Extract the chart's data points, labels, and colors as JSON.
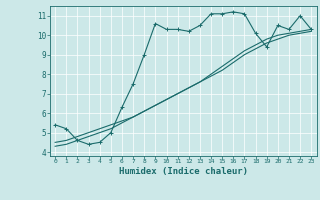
{
  "xlabel": "Humidex (Indice chaleur)",
  "xlim": [
    -0.5,
    23.5
  ],
  "ylim": [
    3.8,
    11.5
  ],
  "xticks": [
    0,
    1,
    2,
    3,
    4,
    5,
    6,
    7,
    8,
    9,
    10,
    11,
    12,
    13,
    14,
    15,
    16,
    17,
    18,
    19,
    20,
    21,
    22,
    23
  ],
  "yticks": [
    4,
    5,
    6,
    7,
    8,
    9,
    10,
    11
  ],
  "bg_color": "#cce8e8",
  "line_color": "#1a6b6b",
  "line1_x": [
    0,
    1,
    2,
    3,
    4,
    5,
    6,
    7,
    8,
    9,
    10,
    11,
    12,
    13,
    14,
    15,
    16,
    17,
    18,
    19,
    20,
    21,
    22,
    23
  ],
  "line1_y": [
    5.4,
    5.2,
    4.6,
    4.4,
    4.5,
    5.0,
    6.3,
    7.5,
    9.0,
    10.6,
    10.3,
    10.3,
    10.2,
    10.5,
    11.1,
    11.1,
    11.2,
    11.1,
    10.1,
    9.4,
    10.5,
    10.3,
    11.0,
    10.3
  ],
  "line2_x": [
    0,
    1,
    2,
    3,
    4,
    5,
    6,
    7,
    8,
    9,
    10,
    11,
    12,
    13,
    14,
    15,
    16,
    17,
    18,
    19,
    20,
    21,
    22,
    23
  ],
  "line2_y": [
    4.5,
    4.6,
    4.8,
    5.0,
    5.2,
    5.4,
    5.6,
    5.8,
    6.1,
    6.4,
    6.7,
    7.0,
    7.3,
    7.6,
    7.9,
    8.2,
    8.6,
    9.0,
    9.3,
    9.6,
    9.8,
    10.0,
    10.1,
    10.2
  ],
  "line3_x": [
    0,
    1,
    2,
    3,
    4,
    5,
    6,
    7,
    8,
    9,
    10,
    11,
    12,
    13,
    14,
    15,
    16,
    17,
    18,
    19,
    20,
    21,
    22,
    23
  ],
  "line3_y": [
    4.3,
    4.4,
    4.6,
    4.8,
    5.0,
    5.2,
    5.5,
    5.8,
    6.1,
    6.4,
    6.7,
    7.0,
    7.3,
    7.6,
    8.0,
    8.4,
    8.8,
    9.2,
    9.5,
    9.8,
    10.0,
    10.1,
    10.2,
    10.3
  ]
}
